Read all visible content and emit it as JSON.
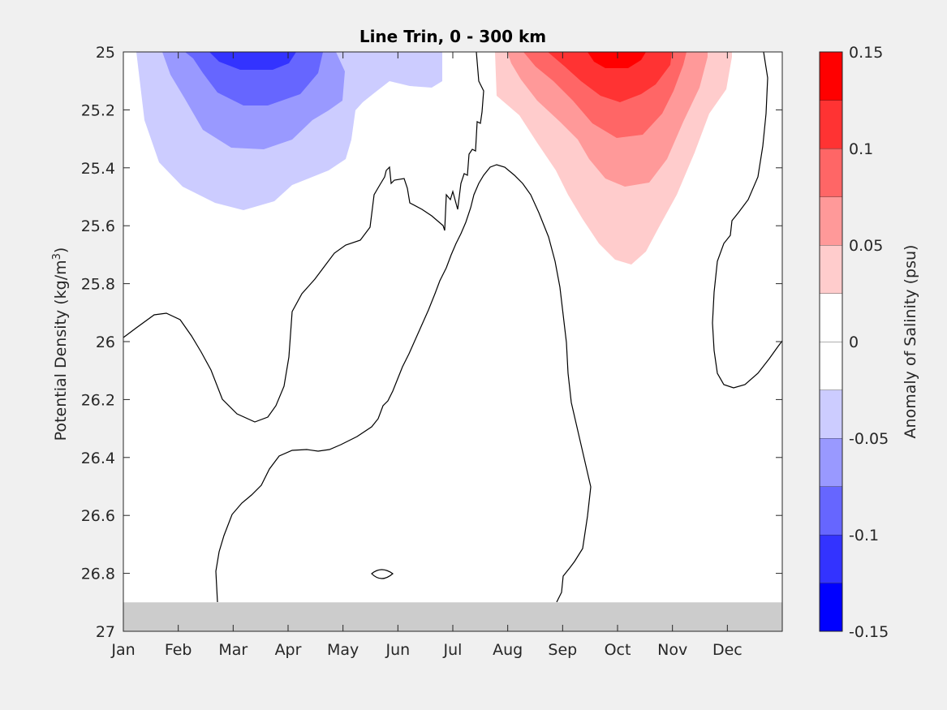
{
  "chart_data": {
    "type": "contour",
    "title": "Line Trin, 0 - 300 km",
    "xlabel": "",
    "ylabel_main": "Potential Density (kg/m",
    "ylabel_sup": "3",
    "ylabel_close": ")",
    "colorbar_label": "Anomaly of Salinity (psu)",
    "x_categories": [
      "Jan",
      "Feb",
      "Mar",
      "Apr",
      "May",
      "Jun",
      "Jul",
      "Aug",
      "Sep",
      "Oct",
      "Nov",
      "Dec"
    ],
    "ylim": [
      25,
      27
    ],
    "y_ticks": [
      25,
      25.2,
      25.4,
      25.6,
      25.8,
      26,
      26.2,
      26.4,
      26.6,
      26.8,
      27
    ],
    "y_tick_labels": [
      "25",
      "25.2",
      "25.4",
      "25.6",
      "25.8",
      "26",
      "26.2",
      "26.4",
      "26.6",
      "26.8",
      "27"
    ],
    "no_data_below_density": 26.9,
    "no_data_color": "#cccccc",
    "clim": [
      -0.15,
      0.15
    ],
    "colorbar_levels": [
      {
        "min": -0.15,
        "max": -0.125,
        "color": "#0000ff"
      },
      {
        "min": -0.125,
        "max": -0.1,
        "color": "#3333ff"
      },
      {
        "min": -0.1,
        "max": -0.075,
        "color": "#6666ff"
      },
      {
        "min": -0.075,
        "max": -0.05,
        "color": "#9999ff"
      },
      {
        "min": -0.05,
        "max": -0.025,
        "color": "#ccccff"
      },
      {
        "min": -0.025,
        "max": 0,
        "color": "#ffffff"
      },
      {
        "min": 0,
        "max": 0.025,
        "color": "#ffffff"
      },
      {
        "min": 0.025,
        "max": 0.05,
        "color": "#ffcccc"
      },
      {
        "min": 0.05,
        "max": 0.075,
        "color": "#ff9999"
      },
      {
        "min": 0.075,
        "max": 0.1,
        "color": "#ff6666"
      },
      {
        "min": 0.1,
        "max": 0.125,
        "color": "#ff3333"
      },
      {
        "min": 0.125,
        "max": 0.15,
        "color": "#ff0000"
      }
    ],
    "colorbar_ticks": [
      0.15,
      0.1,
      0.05,
      0,
      -0.05,
      -0.1,
      -0.15
    ],
    "colorbar_tick_labels": [
      "0.15",
      "0.1",
      "0.05",
      "0",
      "-0.05",
      "-0.1",
      "-0.15"
    ],
    "negative_anomaly_peak": {
      "month": 3.5,
      "density": 25.0,
      "value": -0.12
    },
    "positive_anomaly_peak": {
      "month": 10.0,
      "density": 25.0,
      "value": 0.13
    }
  }
}
